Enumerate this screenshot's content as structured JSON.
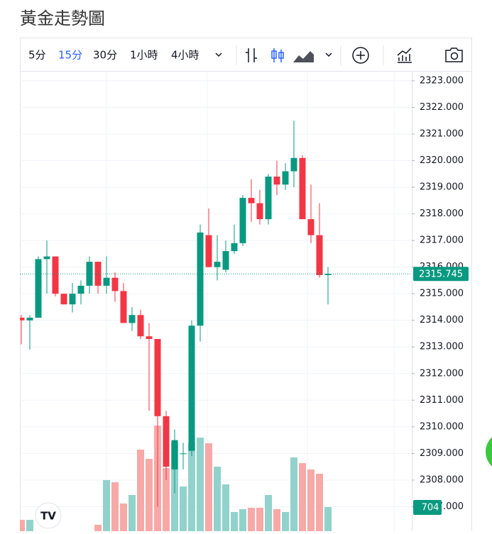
{
  "header": {
    "title": "黃金走勢圖"
  },
  "toolbar": {
    "intervals": [
      "5分",
      "15分",
      "30分",
      "1小時",
      "4小時"
    ]
  },
  "chart_data": {
    "type": "candlestick",
    "open": [
      2314.1,
      2314.0,
      2314.1,
      2316.3,
      2316.4,
      2315.0,
      2314.6,
      2315.0,
      2315.3,
      2316.2,
      2315.3,
      2315.6,
      2315.1,
      2313.9,
      2314.2,
      2313.4,
      2313.3,
      2310.4,
      2308.4,
      2309.0,
      2309.1,
      2313.8,
      2317.2,
      2316.0,
      2315.9,
      2316.6,
      2316.9,
      2318.6,
      2318.4,
      2317.8,
      2319.4,
      2319.1,
      2319.6,
      2320.1,
      2317.8,
      2317.2,
      2315.7
    ],
    "high": [
      2314.2,
      2314.2,
      2316.4,
      2317.0,
      2316.4,
      2315.0,
      2315.4,
      2315.5,
      2316.4,
      2316.2,
      2316.4,
      2315.8,
      2315.4,
      2314.5,
      2314.4,
      2313.9,
      2313.3,
      2310.6,
      2309.9,
      2309.4,
      2314.0,
      2317.6,
      2318.2,
      2317.2,
      2317.0,
      2317.6,
      2318.7,
      2319.3,
      2318.9,
      2319.5,
      2320.0,
      2319.9,
      2321.5,
      2320.2,
      2319.1,
      2318.4,
      2316.0
    ],
    "low": [
      2313.1,
      2312.9,
      2314.1,
      2315.0,
      2314.9,
      2314.6,
      2314.3,
      2314.6,
      2315.0,
      2315.0,
      2315.0,
      2314.7,
      2313.9,
      2313.6,
      2313.3,
      2310.6,
      2307.0,
      2308.0,
      2307.5,
      2308.4,
      2308.9,
      2313.2,
      2316.0,
      2315.5,
      2315.8,
      2316.5,
      2316.8,
      2317.7,
      2317.6,
      2317.6,
      2318.7,
      2318.9,
      2319.0,
      2317.8,
      2316.9,
      2315.6,
      2314.6
    ],
    "close": [
      2314.0,
      2314.1,
      2316.3,
      2316.4,
      2315.0,
      2314.6,
      2315.0,
      2315.3,
      2316.2,
      2315.3,
      2315.6,
      2315.1,
      2313.9,
      2314.2,
      2313.4,
      2313.3,
      2310.4,
      2308.5,
      2309.5,
      2309.0,
      2313.8,
      2317.3,
      2316.0,
      2316.2,
      2316.6,
      2316.9,
      2318.6,
      2318.4,
      2317.8,
      2319.4,
      2319.1,
      2319.6,
      2320.1,
      2317.8,
      2317.2,
      2315.7,
      2315.745
    ],
    "volume": [
      331,
      331,
      null,
      null,
      null,
      null,
      null,
      null,
      null,
      186,
      1490,
      1428,
      807,
      1056,
      2381,
      2111,
      3084,
      1842,
      2588,
      1304,
      2588,
      2732,
      2567,
      1884,
      1366,
      559,
      642,
      683,
      683,
      1056,
      642,
      559,
      2153,
      1987,
      1801,
      1677,
      704
    ],
    "volume_lim": [
      0,
      13440
    ],
    "up_color": "#089981",
    "down_color": "#f23645",
    "volume_up_color": "#92d2cc",
    "volume_down_color": "#f7a9a7",
    "ylim": [
      2306.08,
      2323.37
    ],
    "yticks": [
      {
        "value": 2307,
        "label": "2307.000"
      },
      {
        "value": 2308,
        "label": "2308.000"
      },
      {
        "value": 2309,
        "label": "2309.000"
      },
      {
        "value": 2310,
        "label": "2310.000"
      },
      {
        "value": 2311,
        "label": "2311.000"
      },
      {
        "value": 2312,
        "label": "2312.000"
      },
      {
        "value": 2313,
        "label": "2313.000"
      },
      {
        "value": 2314,
        "label": "2314.000"
      },
      {
        "value": 2315,
        "label": "2315.000"
      },
      {
        "value": 2316,
        "label": "2316.000"
      },
      {
        "value": 2317,
        "label": "2317.000"
      },
      {
        "value": 2318,
        "label": "2318.000"
      },
      {
        "value": 2319,
        "label": "2319.000"
      },
      {
        "value": 2320,
        "label": "2320.000"
      },
      {
        "value": 2321,
        "label": "2321.000"
      },
      {
        "value": 2322,
        "label": "2322.000"
      },
      {
        "value": 2323,
        "label": "2323.000"
      }
    ],
    "grid": true
  }
}
